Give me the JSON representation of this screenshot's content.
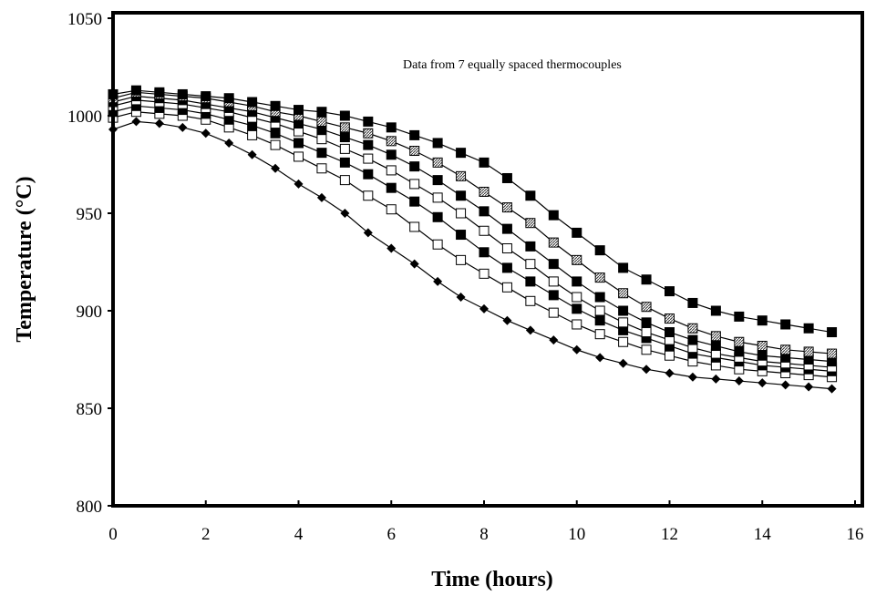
{
  "chart_data": {
    "type": "line",
    "title": "",
    "annotation": "Data from 7 equally spaced thermocouples",
    "xlabel": "Time (hours)",
    "ylabel": "Temperature (°C)",
    "xlim": [
      0,
      16
    ],
    "ylim": [
      800,
      1050
    ],
    "xticks": [
      "0",
      "2",
      "4",
      "6",
      "8",
      "10",
      "12",
      "14",
      "16"
    ],
    "yticks": [
      "800",
      "850",
      "900",
      "950",
      "1000",
      "1050"
    ],
    "grid": false,
    "legend": "none",
    "x": [
      0,
      0.5,
      1,
      1.5,
      2,
      2.5,
      3,
      3.5,
      4,
      4.5,
      5,
      5.5,
      6,
      6.5,
      7,
      7.5,
      8,
      8.5,
      9,
      9.5,
      10,
      10.5,
      11,
      11.5,
      12,
      12.5,
      13,
      13.5,
      14,
      14.5,
      15,
      15.5
    ],
    "series": [
      {
        "marker": "diamond-filled",
        "values": [
          993,
          997,
          996,
          994,
          991,
          986,
          980,
          973,
          965,
          958,
          950,
          940,
          932,
          924,
          915,
          907,
          901,
          895,
          890,
          885,
          880,
          876,
          873,
          870,
          868,
          866,
          865,
          864,
          863,
          862,
          861,
          860
        ]
      },
      {
        "marker": "square-open",
        "values": [
          999,
          1002,
          1001,
          1000,
          998,
          994,
          990,
          985,
          979,
          973,
          967,
          959,
          952,
          943,
          934,
          926,
          919,
          912,
          905,
          899,
          893,
          888,
          884,
          880,
          877,
          874,
          872,
          870,
          869,
          868,
          867,
          866
        ]
      },
      {
        "marker": "square-filled",
        "values": [
          1002,
          1005,
          1004,
          1003,
          1001,
          998,
          995,
          991,
          986,
          981,
          976,
          970,
          963,
          956,
          948,
          939,
          930,
          922,
          915,
          908,
          901,
          895,
          890,
          886,
          882,
          878,
          876,
          874,
          872,
          871,
          870,
          869
        ]
      },
      {
        "marker": "square-open",
        "values": [
          1005,
          1008,
          1007,
          1006,
          1004,
          1002,
          999,
          996,
          992,
          988,
          983,
          978,
          972,
          965,
          958,
          950,
          941,
          932,
          924,
          915,
          907,
          900,
          894,
          889,
          885,
          881,
          878,
          876,
          874,
          873,
          872,
          871
        ]
      },
      {
        "marker": "square-filled",
        "values": [
          1007,
          1010,
          1009,
          1008,
          1006,
          1004,
          1002,
          999,
          996,
          993,
          989,
          985,
          980,
          974,
          967,
          959,
          951,
          942,
          933,
          924,
          915,
          907,
          900,
          894,
          889,
          885,
          882,
          879,
          877,
          876,
          875,
          874
        ]
      },
      {
        "marker": "square-hatched",
        "values": [
          1009,
          1012,
          1011,
          1010,
          1009,
          1007,
          1005,
          1002,
          1000,
          997,
          994,
          991,
          987,
          982,
          976,
          969,
          961,
          953,
          945,
          935,
          926,
          917,
          909,
          902,
          896,
          891,
          887,
          884,
          882,
          880,
          879,
          878
        ]
      },
      {
        "marker": "square-filled",
        "values": [
          1011,
          1013,
          1012,
          1011,
          1010,
          1009,
          1007,
          1005,
          1003,
          1002,
          1000,
          997,
          994,
          990,
          986,
          981,
          976,
          968,
          959,
          949,
          940,
          931,
          922,
          916,
          910,
          904,
          900,
          897,
          895,
          893,
          891,
          889
        ]
      }
    ]
  }
}
